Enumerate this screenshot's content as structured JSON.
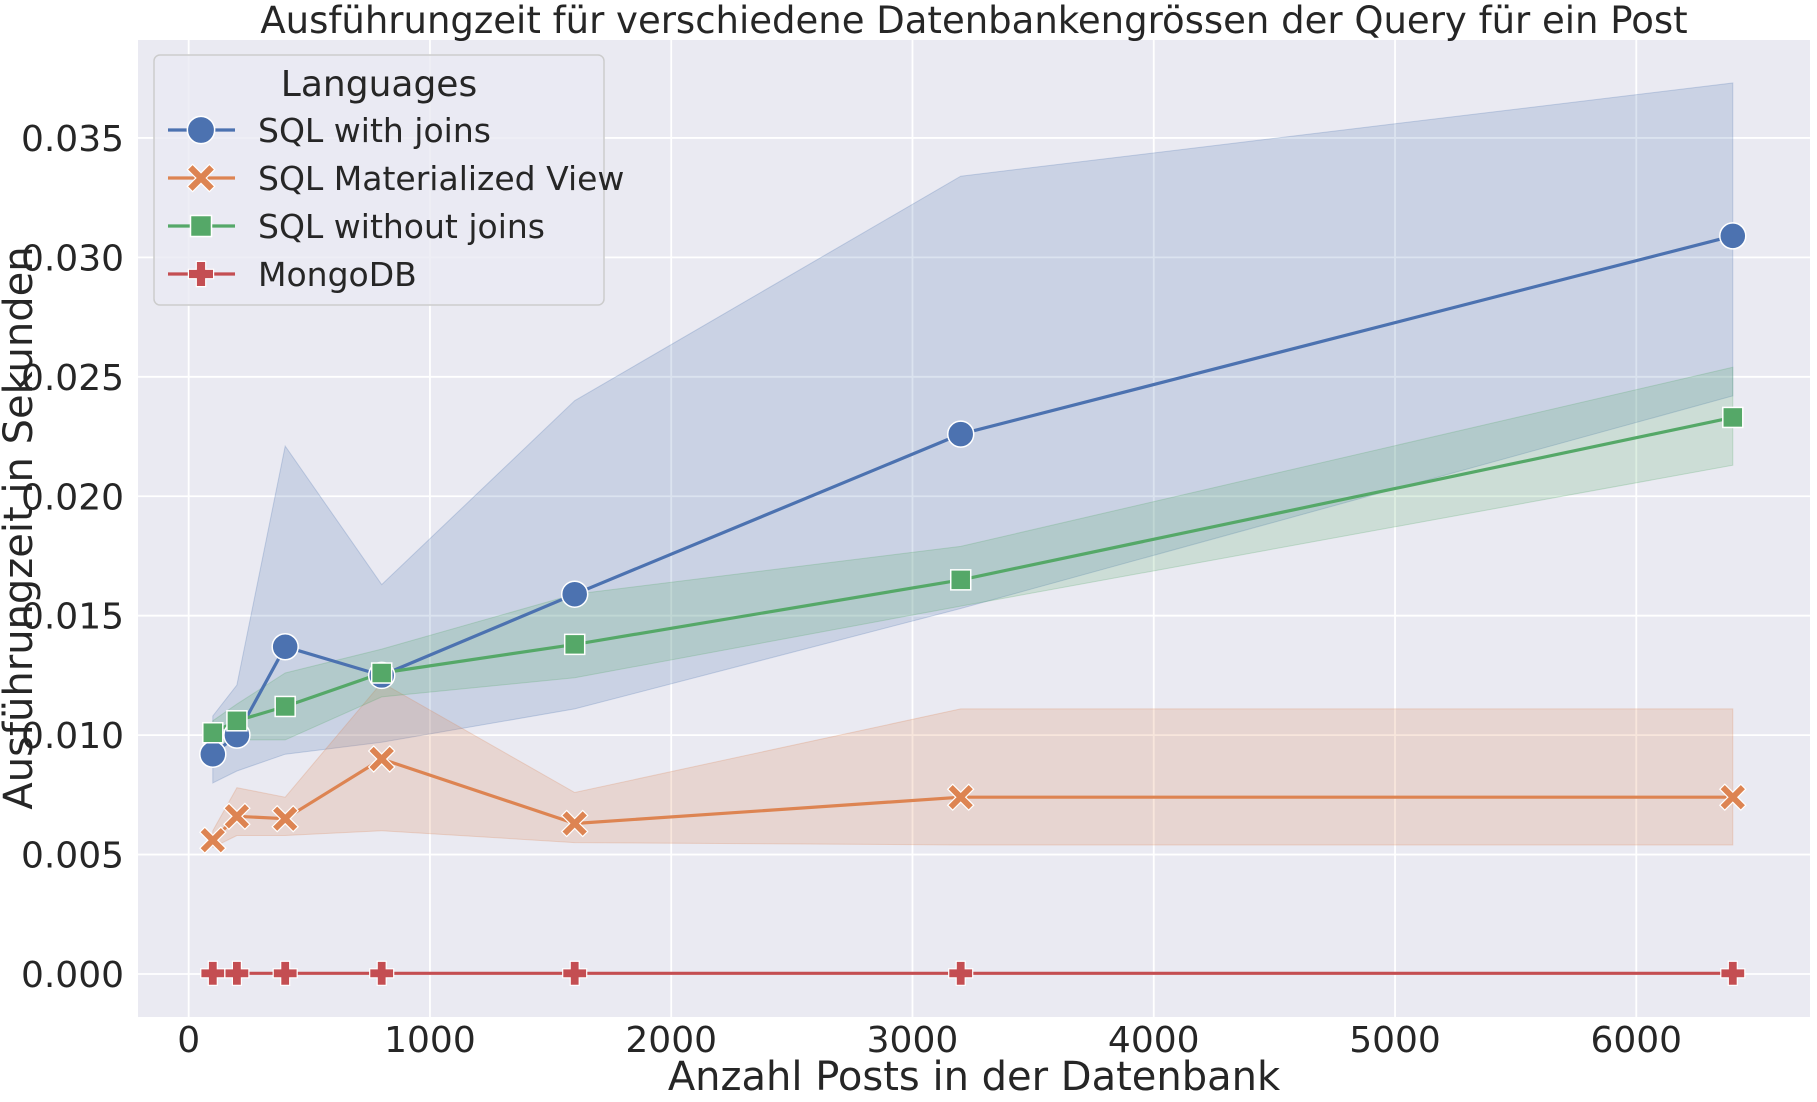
{
  "chart_data": {
    "type": "line",
    "title": "Ausführungzeit für verschiedene Datenbankengrössen der Query für ein Post",
    "xlabel": "Anzahl Posts in der Datenbank",
    "ylabel": "Ausführungzeit in Sekunden",
    "xlim": [
      -210,
      6720
    ],
    "ylim": [
      -0.0018,
      0.0391
    ],
    "xticks": [
      0,
      1000,
      2000,
      3000,
      4000,
      5000,
      6000
    ],
    "xtick_labels": [
      "0",
      "1000",
      "2000",
      "3000",
      "4000",
      "5000",
      "6000"
    ],
    "yticks": [
      0.0,
      0.005,
      0.01,
      0.015,
      0.02,
      0.025,
      0.03,
      0.035
    ],
    "ytick_labels": [
      "0.000",
      "0.005",
      "0.010",
      "0.015",
      "0.020",
      "0.025",
      "0.030",
      "0.035"
    ],
    "grid": true,
    "background": "#eaeaf2",
    "legend": {
      "title": "Languages",
      "placement": "top-left"
    },
    "x": [
      100,
      200,
      400,
      800,
      1600,
      3200,
      6400
    ],
    "series": [
      {
        "name": "SQL with joins",
        "color": "#4c72b0",
        "marker": "circle",
        "values": [
          0.0092,
          0.01,
          0.0137,
          0.0125,
          0.0159,
          0.0226,
          0.0309
        ],
        "ci_low": [
          0.008,
          0.0085,
          0.0092,
          0.0097,
          0.0111,
          0.0153,
          0.0242
        ],
        "ci_high": [
          0.0108,
          0.0121,
          0.0221,
          0.0163,
          0.024,
          0.0334,
          0.0373
        ]
      },
      {
        "name": "SQL Materialized View",
        "color": "#dd8452",
        "marker": "x",
        "values": [
          0.0056,
          0.0066,
          0.0065,
          0.009,
          0.0063,
          0.0074,
          0.0074
        ],
        "ci_low": [
          0.0053,
          0.0058,
          0.0058,
          0.006,
          0.0055,
          0.0054,
          0.0054
        ],
        "ci_high": [
          0.006,
          0.0078,
          0.0074,
          0.0122,
          0.0076,
          0.0111,
          0.0111
        ]
      },
      {
        "name": "SQL without joins",
        "color": "#55a868",
        "marker": "square",
        "values": [
          0.0101,
          0.0106,
          0.0112,
          0.0126,
          0.0138,
          0.0165,
          0.0233
        ],
        "ci_low": [
          0.0096,
          0.0098,
          0.0098,
          0.0116,
          0.0124,
          0.0154,
          0.0213
        ],
        "ci_high": [
          0.0106,
          0.0113,
          0.0126,
          0.0136,
          0.0159,
          0.0179,
          0.0254
        ]
      },
      {
        "name": "MongoDB",
        "color": "#c44e52",
        "marker": "plus",
        "values": [
          3e-05,
          3e-05,
          3e-05,
          3e-05,
          3e-05,
          3e-05,
          3e-05
        ],
        "ci_low": [
          2e-05,
          2e-05,
          2e-05,
          2e-05,
          2e-05,
          2e-05,
          2e-05
        ],
        "ci_high": [
          4e-05,
          4e-05,
          4e-05,
          4e-05,
          4e-05,
          4e-05,
          4e-05
        ]
      }
    ]
  }
}
